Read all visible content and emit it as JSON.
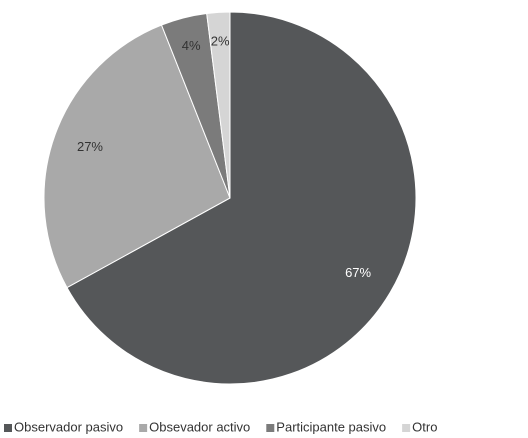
{
  "chart_data": {
    "type": "pie",
    "categories": [
      "Observador pasivo",
      "Obsevador activo",
      "Participante pasivo",
      "Otro"
    ],
    "values": [
      67,
      27,
      4,
      2
    ],
    "value_labels": [
      "67%",
      "27%",
      "4%",
      "2%"
    ],
    "colors": [
      "#555759",
      "#a9a9a9",
      "#7b7b7b",
      "#d5d5d5"
    ],
    "legend": "bottom"
  }
}
